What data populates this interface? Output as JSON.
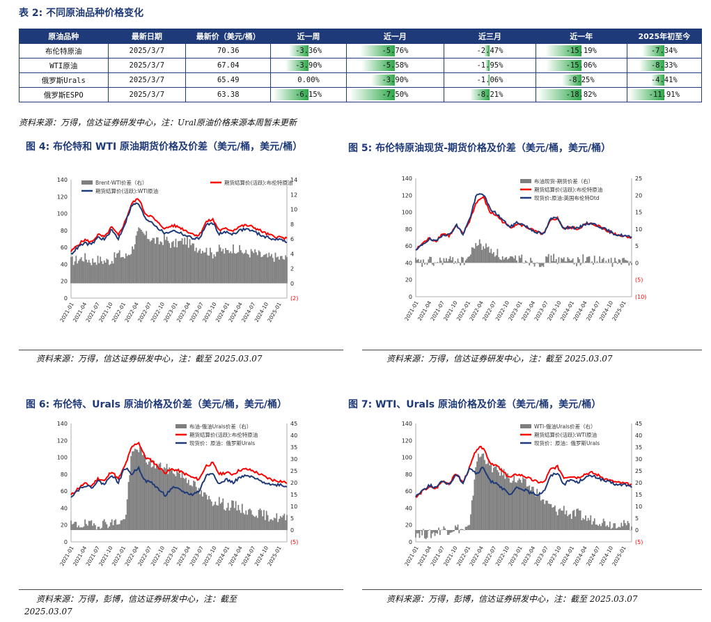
{
  "table": {
    "title": "表 2:  不同原油品种价格变化",
    "headers": [
      "原油品种",
      "最新日期",
      "最新价（美元/桶）",
      "近一周",
      "近一月",
      "近三月",
      "近一年",
      "2025年初至今"
    ],
    "rows": [
      {
        "name": "布伦特原油",
        "date": "2025/3/7",
        "price": "70.36",
        "changes": [
          "-3.36%",
          "-5.76%",
          "-2.47%",
          "-15.19%",
          "-7.34%"
        ],
        "bars": [
          0.55,
          0.75,
          0.13,
          0.83,
          0.62
        ]
      },
      {
        "name": "WTI原油",
        "date": "2025/3/7",
        "price": "67.04",
        "changes": [
          "-3.90%",
          "-5.58%",
          "-1.95%",
          "-15.06%",
          "-8.33%"
        ],
        "bars": [
          0.64,
          0.73,
          0.1,
          0.82,
          0.7
        ]
      },
      {
        "name": "俄罗斯Urals",
        "date": "2025/3/7",
        "price": "65.49",
        "changes": [
          "0.00%",
          "-3.90%",
          "-1.06%",
          "-8.25%",
          "-4.41%"
        ],
        "bars": [
          0.0,
          0.51,
          0.06,
          0.45,
          0.37
        ]
      },
      {
        "name": "俄罗斯ESPO",
        "date": "2025/3/7",
        "price": "63.38",
        "changes": [
          "-6.15%",
          "-7.50%",
          "-8.21%",
          "-18.82%",
          "-11.91%"
        ],
        "bars": [
          1.0,
          0.98,
          0.45,
          1.0,
          1.0
        ]
      }
    ],
    "source": "资料来源：万得，信达证券研发中心，注：Ural原油价格来源本周暂未更新"
  },
  "colors": {
    "header": "#1f3a78",
    "bar": "#2ea84a",
    "red": "#ff0000",
    "navy": "#1f3a78",
    "grey": "#7f7f7f"
  },
  "figures": [
    {
      "title": "图 4:  布伦特和  WTI 原油期货价格及价差（美元/桶，美元/桶）",
      "source": "资料来源：万得，信达证券研发中心，注：截至 2025.03.07",
      "chart_data": {
        "type": "line",
        "left_ticks": [
          "140",
          "120",
          "100",
          "80",
          "60",
          "40",
          "20",
          "0"
        ],
        "right_ticks": [
          "14",
          "12",
          "10",
          "8",
          "6",
          "4",
          "2",
          "0",
          "(2)"
        ],
        "x_ticks": [
          "2021-01",
          "2021-04",
          "2021-07",
          "2021-10",
          "2022-01",
          "2022-04",
          "2022-07",
          "2022-10",
          "2023-01",
          "2023-04",
          "2023-07",
          "2023-10",
          "2024-01",
          "2024-04",
          "2024-07",
          "2024-10",
          "2025-01"
        ],
        "ylim_left": [
          0,
          140
        ],
        "ylim_right": [
          -2,
          14
        ],
        "legend": [
          "Brent-WTI价差（右）",
          "期货结算价(活跃):布伦特原油",
          "期货结算价(活跃):WTI原油"
        ],
        "series": [
          {
            "name": "期货结算价(活跃):布伦特原油",
            "values": [
              55,
              63,
              69,
              66,
              75,
              72,
              84,
              74,
              90,
              112,
              118,
              100,
              96,
              88,
              82,
              86,
              84,
              80,
              76,
              74,
              90,
              93,
              80,
              82,
              80,
              85,
              86,
              84,
              80,
              76,
              73,
              72,
              70
            ]
          },
          {
            "name": "期货结算价(活跃):WTI原油",
            "values": [
              52,
              60,
              65,
              63,
              72,
              69,
              81,
              70,
              88,
              110,
              112,
              94,
              90,
              82,
              76,
              80,
              78,
              74,
              71,
              70,
              86,
              89,
              76,
              78,
              76,
              80,
              82,
              79,
              75,
              72,
              70,
              69,
              67
            ]
          },
          {
            "name": "Brent-WTI价差（右）",
            "values": [
              3.0,
              3.2,
              3.5,
              3.0,
              3.2,
              3.0,
              3.1,
              4.0,
              3.5,
              4.5,
              7.0,
              6.5,
              6.0,
              5.5,
              6.0,
              5.2,
              5.5,
              5.8,
              5.0,
              4.8,
              4.5,
              4.0,
              4.6,
              4.2,
              4.8,
              4.5,
              4.0,
              4.2,
              3.8,
              3.5,
              3.6,
              3.4,
              3.3
            ]
          }
        ]
      }
    },
    {
      "title": "图 5:  布伦特原油现货-期货价格及价差（美元/桶，美元/桶）",
      "source": "资料来源：万得，信达证券研发中心，注：截至 2025.03.07",
      "chart_data": {
        "type": "line",
        "left_ticks": [
          "140",
          "120",
          "100",
          "80",
          "60",
          "40",
          "20",
          "0"
        ],
        "right_ticks": [
          "25",
          "20",
          "15",
          "10",
          "5",
          "0",
          "(5)",
          "(10)"
        ],
        "x_ticks": [
          "2021-01",
          "2021-04",
          "2021-07",
          "2021-10",
          "2022-01",
          "2022-04",
          "2022-07",
          "2022-10",
          "2023-01",
          "2023-04",
          "2023-07",
          "2023-10",
          "2024-01",
          "2024-04",
          "2024-07",
          "2024-10",
          "2025-01"
        ],
        "ylim_left": [
          0,
          140
        ],
        "ylim_right": [
          -10,
          25
        ],
        "legend": [
          "布油现货-期货价差（右）",
          "期货结算价(活跃):布伦特原油",
          "现货价:原油:英国布伦特Dtd"
        ],
        "series": [
          {
            "name": "期货结算价(活跃):布伦特原油",
            "values": [
              55,
              63,
              69,
              66,
              75,
              72,
              84,
              74,
              90,
              112,
              118,
              100,
              96,
              88,
              82,
              86,
              84,
              80,
              76,
              74,
              90,
              93,
              80,
              82,
              80,
              85,
              86,
              84,
              80,
              76,
              73,
              72,
              70
            ]
          },
          {
            "name": "现货价:原油:英国布伦特Dtd",
            "values": [
              54,
              62,
              68,
              65,
              74,
              73,
              85,
              74,
              92,
              120,
              122,
              104,
              98,
              90,
              82,
              88,
              85,
              80,
              76,
              74,
              92,
              94,
              80,
              83,
              80,
              86,
              87,
              84,
              80,
              76,
              73,
              72,
              70
            ]
          },
          {
            "name": "布油现货-期货价差（右）",
            "values": [
              0.2,
              -0.3,
              0.5,
              -0.2,
              0.8,
              0.5,
              1.0,
              0.3,
              2.0,
              6.0,
              5.0,
              4.0,
              3.0,
              1.0,
              0.5,
              1.5,
              1.2,
              0.5,
              0.3,
              0.2,
              1.5,
              1.0,
              0.4,
              0.8,
              0.5,
              1.2,
              1.0,
              0.6,
              0.3,
              0.2,
              0.4,
              0.3,
              0.2
            ]
          }
        ]
      }
    },
    {
      "title": "图 6:  布伦特、Urals 原油价格及价差（美元/桶，美元/桶）",
      "source_lines": [
        "资料来源：万得，彭博，信达证券研发中心，注：截至",
        "2025.03.07"
      ],
      "chart_data": {
        "type": "line",
        "left_ticks": [
          "140",
          "120",
          "100",
          "80",
          "60",
          "40",
          "20",
          "0"
        ],
        "right_ticks": [
          "45",
          "40",
          "35",
          "30",
          "25",
          "20",
          "15",
          "10",
          "5",
          "0",
          "(5)"
        ],
        "x_ticks": [
          "2021-01",
          "2021-04",
          "2021-07",
          "2021-10",
          "2022-01",
          "2022-04",
          "2022-07",
          "2022-10",
          "2023-01",
          "2023-04",
          "2023-07",
          "2023-10",
          "2024-01",
          "2024-04",
          "2024-07",
          "2024-10",
          "2025-01"
        ],
        "ylim_left": [
          0,
          140
        ],
        "ylim_right": [
          -5,
          45
        ],
        "legend": [
          "布油-俄油Urals价差（右）",
          "期货结算价(活跃):布伦特原油",
          "现货价：原油：俄罗斯Urals"
        ],
        "series": [
          {
            "name": "期货结算价(活跃):布伦特原油",
            "values": [
              55,
              63,
              69,
              66,
              75,
              72,
              84,
              74,
              90,
              112,
              118,
              100,
              96,
              88,
              82,
              86,
              84,
              80,
              76,
              74,
              90,
              93,
              80,
              82,
              80,
              85,
              86,
              84,
              80,
              76,
              73,
              72,
              70
            ]
          },
          {
            "name": "现货价：原油：俄罗斯Urals",
            "values": [
              54,
              61,
              67,
              64,
              72,
              68,
              80,
              70,
              88,
              80,
              88,
              72,
              70,
              62,
              55,
              64,
              62,
              58,
              56,
              60,
              78,
              82,
              68,
              74,
              70,
              76,
              78,
              76,
              72,
              70,
              67,
              68,
              65
            ]
          },
          {
            "name": "布油-俄油Urals价差（右）",
            "values": [
              2.0,
              2.2,
              2.5,
              2.0,
              2.5,
              3.0,
              3.0,
              3.5,
              4.0,
              32.0,
              35.0,
              30.0,
              28.0,
              27.0,
              26.0,
              25.0,
              24.0,
              22.0,
              20.0,
              16.0,
              14.0,
              12.0,
              12.5,
              10.0,
              10.5,
              9.5,
              8.0,
              7.5,
              7.0,
              6.0,
              5.5,
              5.0,
              5.0
            ]
          }
        ]
      }
    },
    {
      "title": "图 7:  WTI、Urals 原油价格及价差（美元/桶，美元/桶）",
      "source": "资料来源：万得，彭博，信达证券研发中心，注：截至 2025.03.07",
      "chart_data": {
        "type": "line",
        "left_ticks": [
          "140",
          "120",
          "100",
          "80",
          "60",
          "40",
          "20",
          "0"
        ],
        "right_ticks": [
          "45",
          "40",
          "35",
          "30",
          "25",
          "20",
          "15",
          "10",
          "5",
          "0",
          "(5)"
        ],
        "x_ticks": [
          "2021-01",
          "2021-04",
          "2021-07",
          "2021-10",
          "2022-01",
          "2022-04",
          "2022-07",
          "2022-10",
          "2023-01",
          "2023-04",
          "2023-07",
          "2023-10",
          "2024-01",
          "2024-04",
          "2024-07",
          "2024-10",
          "2025-01"
        ],
        "ylim_left": [
          0,
          140
        ],
        "ylim_right": [
          -5,
          45
        ],
        "legend": [
          "WTI-俄油Urals价差（右）",
          "期货结算价(活跃):WTI原油",
          "现货价：原油：俄罗斯Urals"
        ],
        "series": [
          {
            "name": "期货结算价(活跃):WTI原油",
            "values": [
              52,
              60,
              65,
              63,
              72,
              69,
              81,
              70,
              88,
              110,
              112,
              94,
              90,
              82,
              76,
              80,
              78,
              74,
              71,
              70,
              86,
              89,
              76,
              78,
              76,
              80,
              82,
              79,
              75,
              72,
              70,
              69,
              67
            ]
          },
          {
            "name": "现货价：原油：俄罗斯Urals",
            "values": [
              54,
              61,
              67,
              64,
              72,
              68,
              80,
              70,
              88,
              80,
              88,
              72,
              70,
              62,
              55,
              64,
              62,
              58,
              56,
              60,
              78,
              82,
              68,
              74,
              70,
              76,
              78,
              76,
              72,
              70,
              67,
              68,
              65
            ]
          },
          {
            "name": "WTI-俄油Urals价差（右）",
            "values": [
              -1.0,
              -1.5,
              -2.0,
              -1.0,
              0.5,
              0.0,
              1.0,
              0.0,
              1.0,
              30.0,
              32.0,
              27.0,
              25.0,
              24.0,
              22.0,
              21.0,
              20.0,
              18.0,
              16.0,
              12.0,
              10.0,
              8.0,
              9.0,
              6.0,
              7.0,
              5.0,
              4.5,
              4.0,
              3.5,
              2.5,
              3.0,
              2.0,
              2.0
            ]
          }
        ]
      }
    }
  ]
}
